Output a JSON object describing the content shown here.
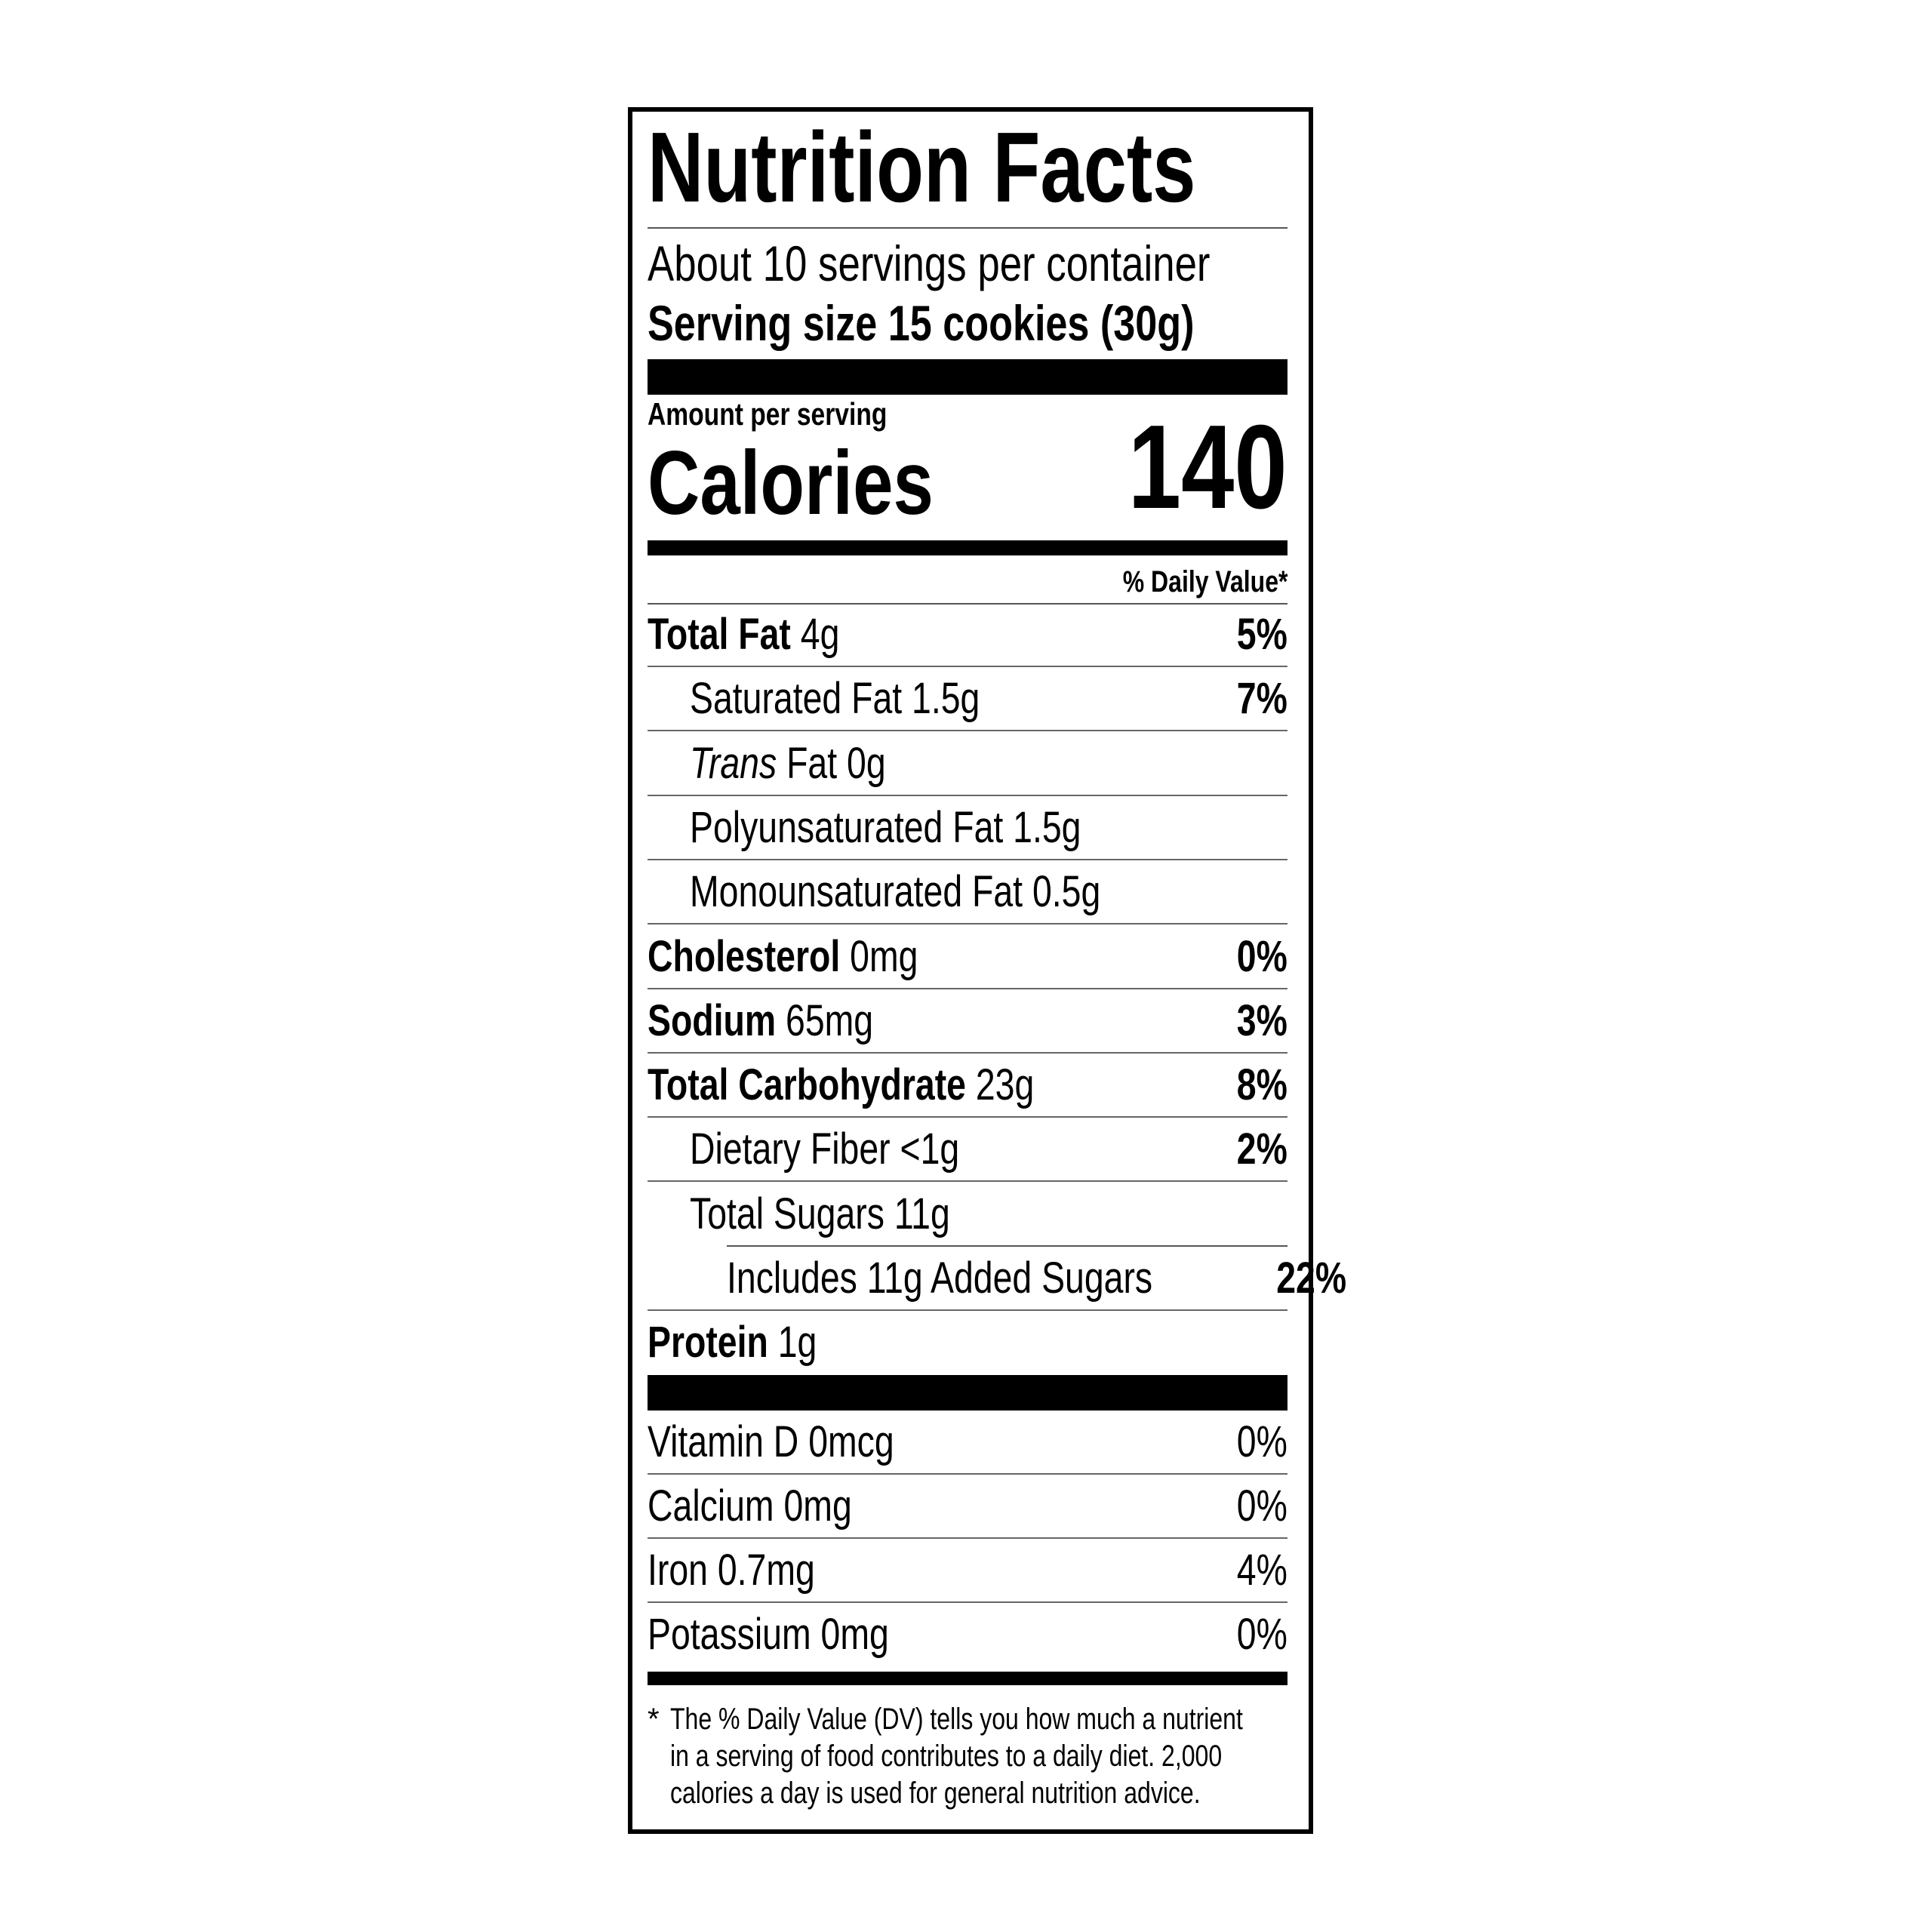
{
  "title": "Nutrition Facts",
  "servings_per_container": "About 10 servings per container",
  "serving_size": "Serving size 15 cookies (30g)",
  "amount_per_serving": "Amount per serving",
  "calories_label": "Calories",
  "calories_value": "140",
  "daily_value_header": "% Daily Value*",
  "nutrients": [
    {
      "name": "Total Fat",
      "amount": "4g",
      "dv": "5%",
      "bold": true,
      "indent": 0
    },
    {
      "name": "Saturated Fat",
      "amount": "1.5g",
      "dv": "7%",
      "bold": false,
      "indent": 1
    },
    {
      "name": "Trans",
      "name_suffix": "Fat",
      "amount": "0g",
      "dv": "",
      "bold": false,
      "indent": 1,
      "italic": true
    },
    {
      "name": "Polyunsaturated Fat",
      "amount": "1.5g",
      "dv": "",
      "bold": false,
      "indent": 1
    },
    {
      "name": "Monounsaturated Fat",
      "amount": "0.5g",
      "dv": "",
      "bold": false,
      "indent": 1
    },
    {
      "name": "Cholesterol",
      "amount": "0mg",
      "dv": "0%",
      "bold": true,
      "indent": 0
    },
    {
      "name": "Sodium",
      "amount": "65mg",
      "dv": "3%",
      "bold": true,
      "indent": 0
    },
    {
      "name": "Total Carbohydrate",
      "amount": "23g",
      "dv": "8%",
      "bold": true,
      "indent": 0
    },
    {
      "name": "Dietary Fiber",
      "amount": "<1g",
      "dv": "2%",
      "bold": false,
      "indent": 1
    },
    {
      "name": "Total Sugars",
      "amount": "11g",
      "dv": "",
      "bold": false,
      "indent": 1,
      "short_rule": true
    },
    {
      "name": "Includes 11g Added Sugars",
      "amount": "",
      "dv": "22%",
      "bold": false,
      "indent": 2
    },
    {
      "name": "Protein",
      "amount": "1g",
      "dv": "",
      "bold": true,
      "indent": 0,
      "no_rule": true
    }
  ],
  "vitamins": [
    {
      "name": "Vitamin D",
      "amount": "0mcg",
      "dv": "0%"
    },
    {
      "name": "Calcium",
      "amount": "0mg",
      "dv": "0%"
    },
    {
      "name": "Iron",
      "amount": "0.7mg",
      "dv": "4%"
    },
    {
      "name": "Potassium",
      "amount": "0mg",
      "dv": "0%"
    }
  ],
  "footnote": {
    "marker": "*",
    "lines": [
      "The % Daily Value (DV) tells you how much a nutrient",
      "in a serving of food contributes to a daily diet. 2,000",
      "calories a day is used for general nutrition advice."
    ]
  }
}
